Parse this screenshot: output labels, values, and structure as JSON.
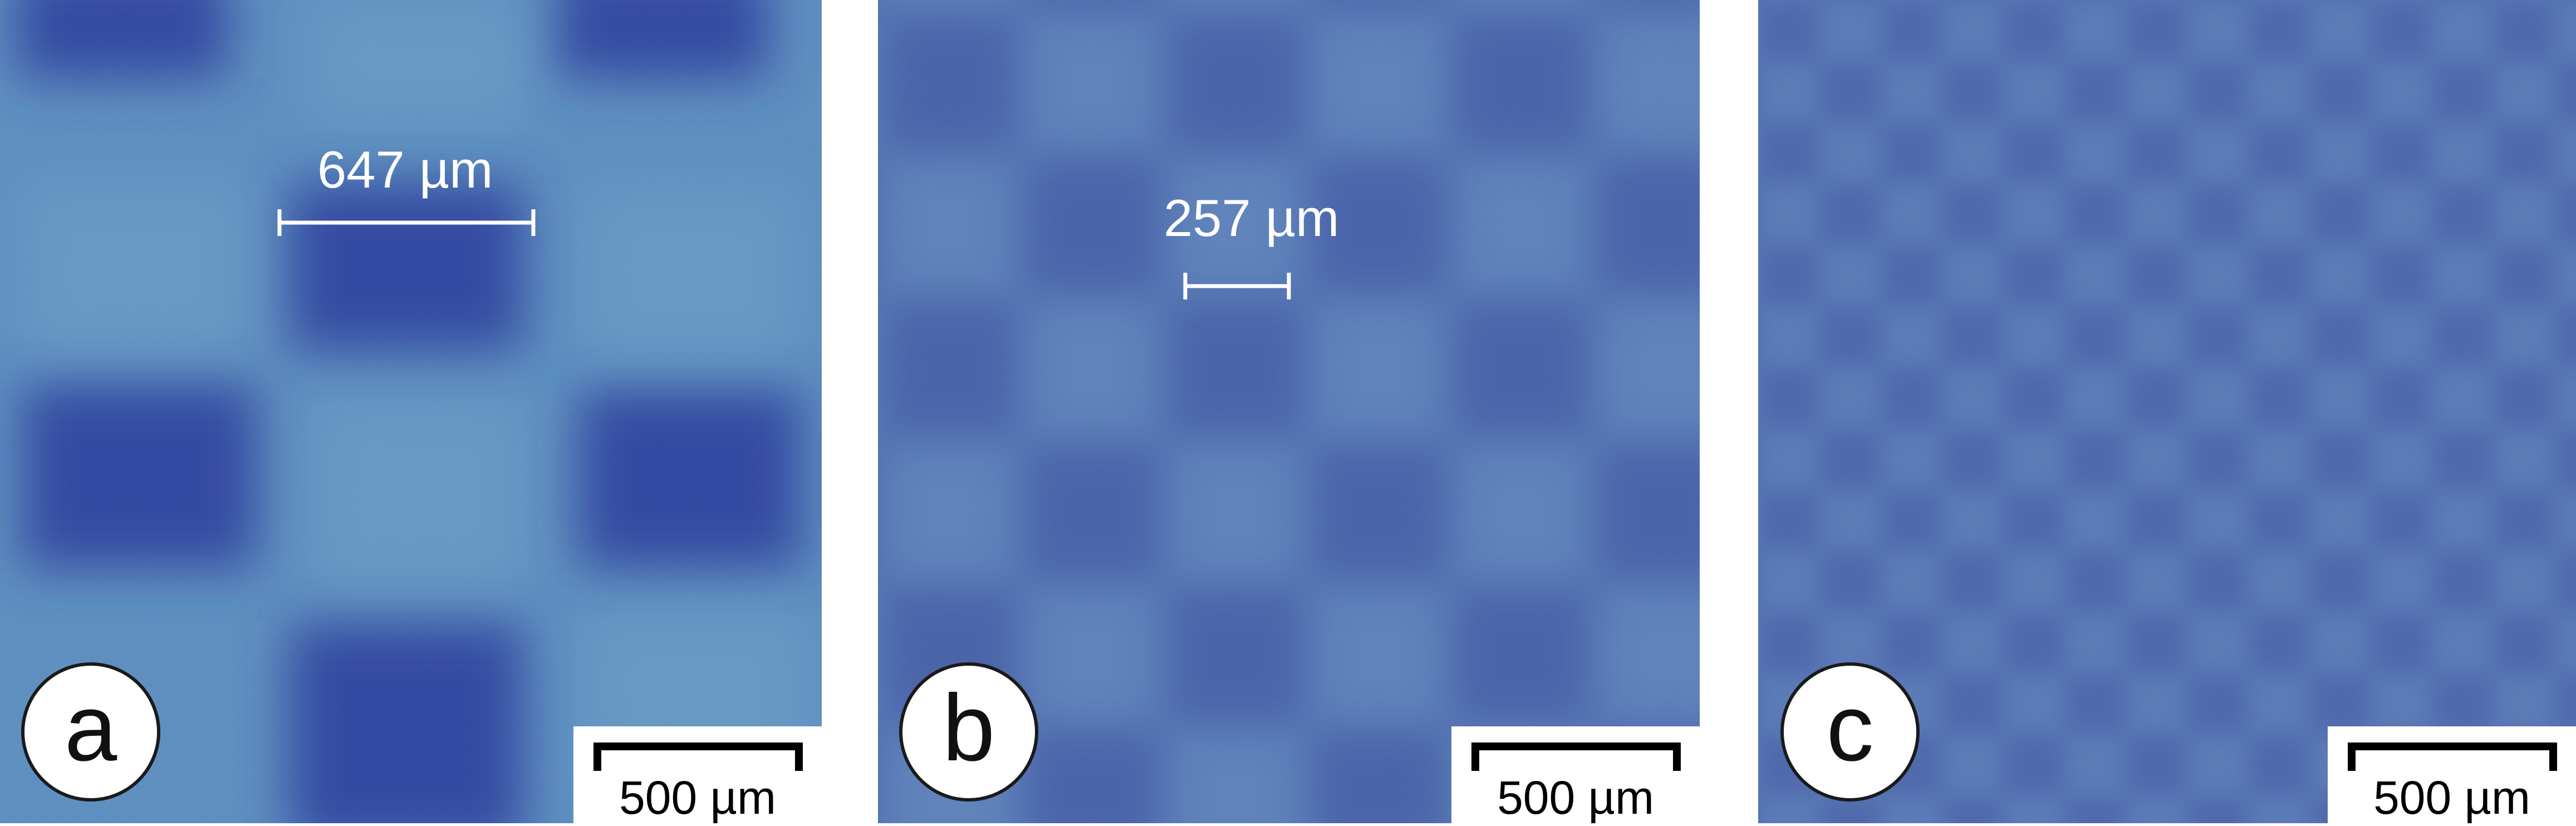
{
  "panels": [
    {
      "label": "a",
      "measurement": "647 µm",
      "scale_bar": "500 µm",
      "colors": {
        "base": "#4f76b0",
        "dark": "#28399a",
        "light": "#5c8ebf"
      }
    },
    {
      "label": "b",
      "measurement": "257 µm",
      "scale_bar": "500 µm",
      "colors": {
        "base": "#4b6cad",
        "dark": "#3d55a0",
        "light": "#5a80b8"
      }
    },
    {
      "label": "c",
      "measurement": "",
      "scale_bar": "500 µm",
      "colors": {
        "base": "#4a66aa",
        "dark": "#4058a3",
        "light": "#5a7cb6"
      }
    }
  ]
}
